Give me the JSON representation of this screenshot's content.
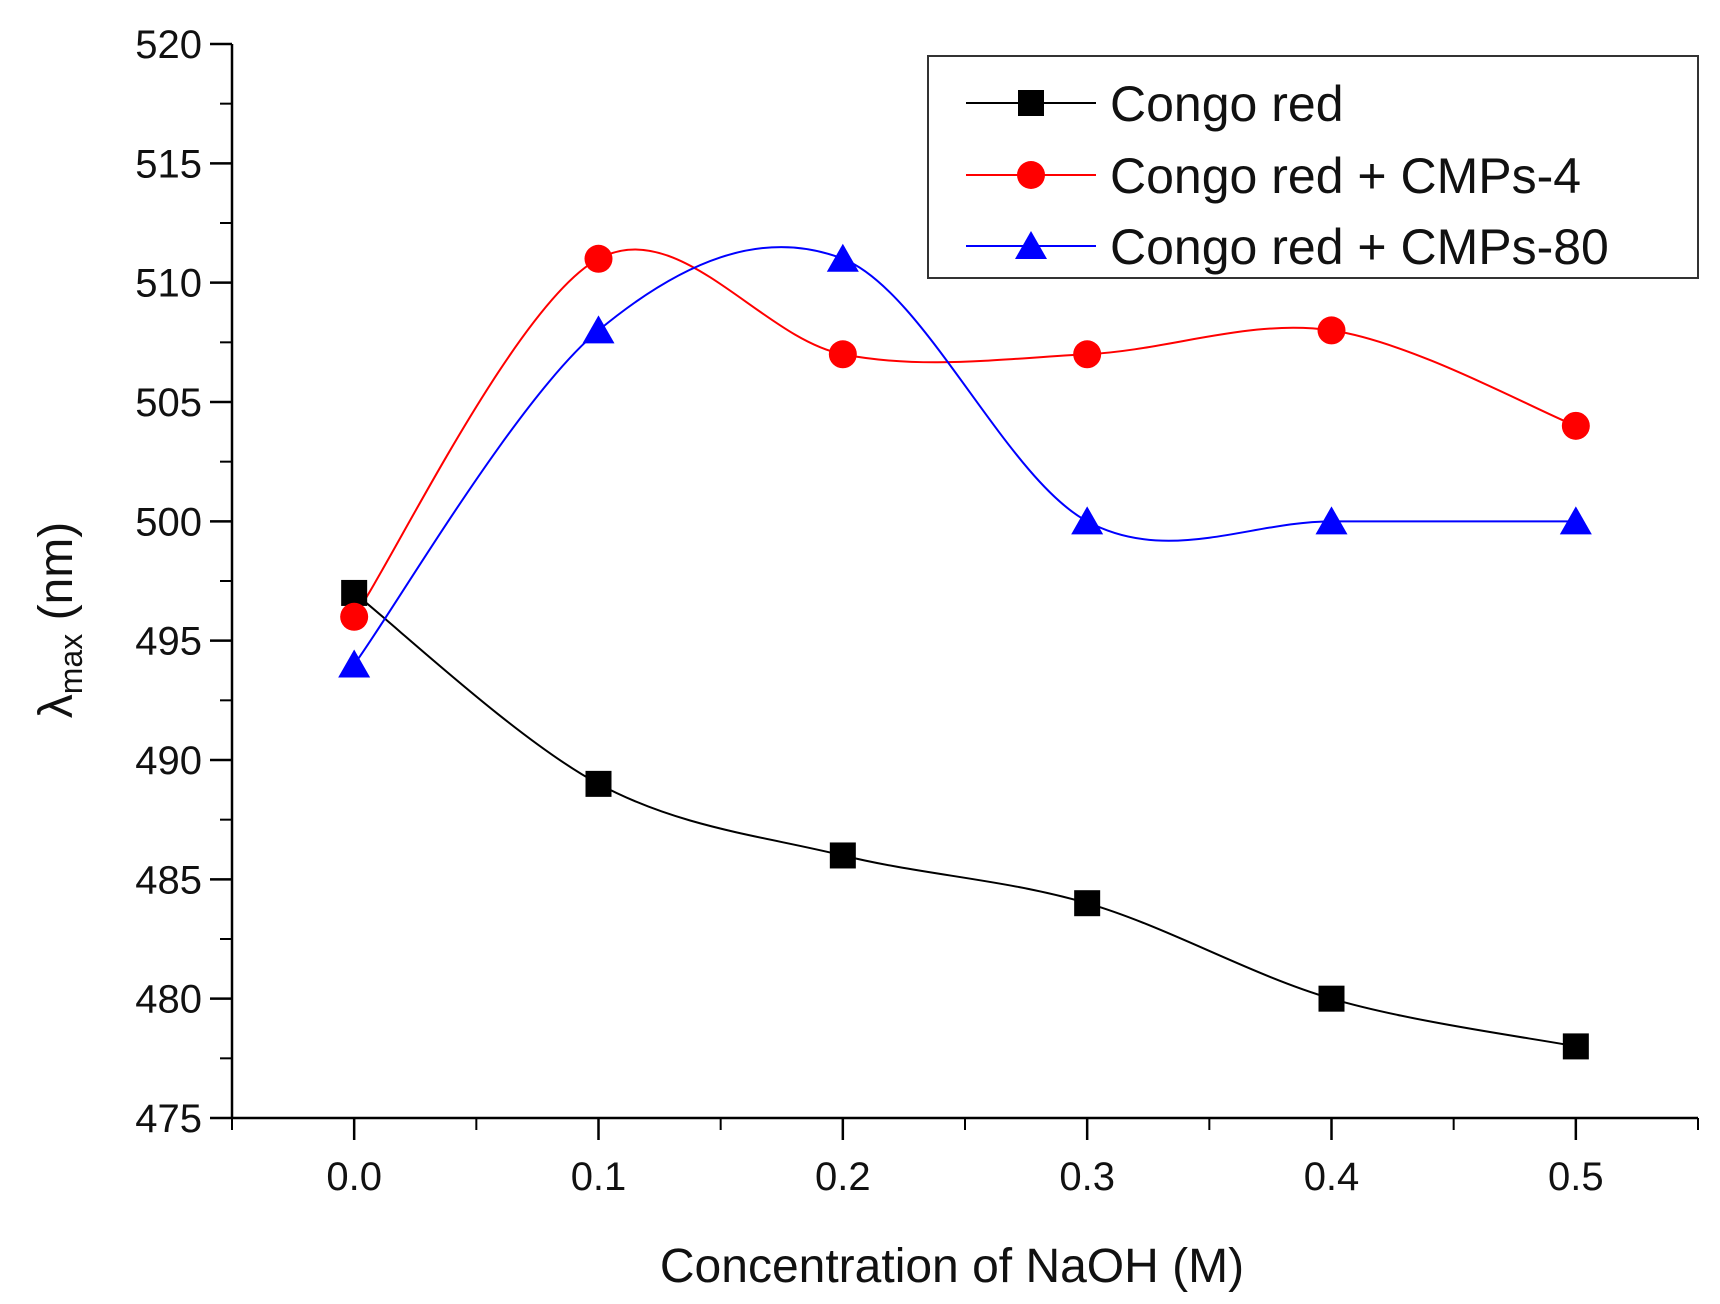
{
  "chart_data": {
    "type": "line",
    "title": "",
    "xlabel": "Concentration of NaOH (M)",
    "ylabel": {
      "symbol": "λ",
      "subscript": "max",
      "unit": " (nm)"
    },
    "x": [
      0.0,
      0.1,
      0.2,
      0.3,
      0.4,
      0.5
    ],
    "xlim": [
      -0.05,
      0.55
    ],
    "ylim": [
      475,
      520
    ],
    "x_ticks": [
      0.0,
      0.1,
      0.2,
      0.3,
      0.4,
      0.5
    ],
    "x_tick_labels": [
      "0.0",
      "0.1",
      "0.2",
      "0.3",
      "0.4",
      "0.5"
    ],
    "y_ticks": [
      475,
      480,
      485,
      490,
      495,
      500,
      505,
      510,
      515,
      520
    ],
    "y_tick_labels": [
      "475",
      "480",
      "485",
      "490",
      "495",
      "500",
      "505",
      "510",
      "515",
      "520"
    ],
    "grid": false,
    "legend_position": "top-right",
    "smooth": true,
    "series": [
      {
        "name": "Congo red",
        "color": "#000000",
        "marker": "square",
        "values": [
          497,
          489,
          486,
          484,
          480,
          478
        ]
      },
      {
        "name": "Congo red + CMPs-4",
        "color": "#ff0000",
        "marker": "circle",
        "values": [
          496,
          511,
          507,
          507,
          508,
          504
        ]
      },
      {
        "name": "Congo red + CMPs-80",
        "color": "#0000ff",
        "marker": "triangle",
        "values": [
          494,
          508,
          511,
          500,
          500,
          500
        ]
      }
    ]
  }
}
